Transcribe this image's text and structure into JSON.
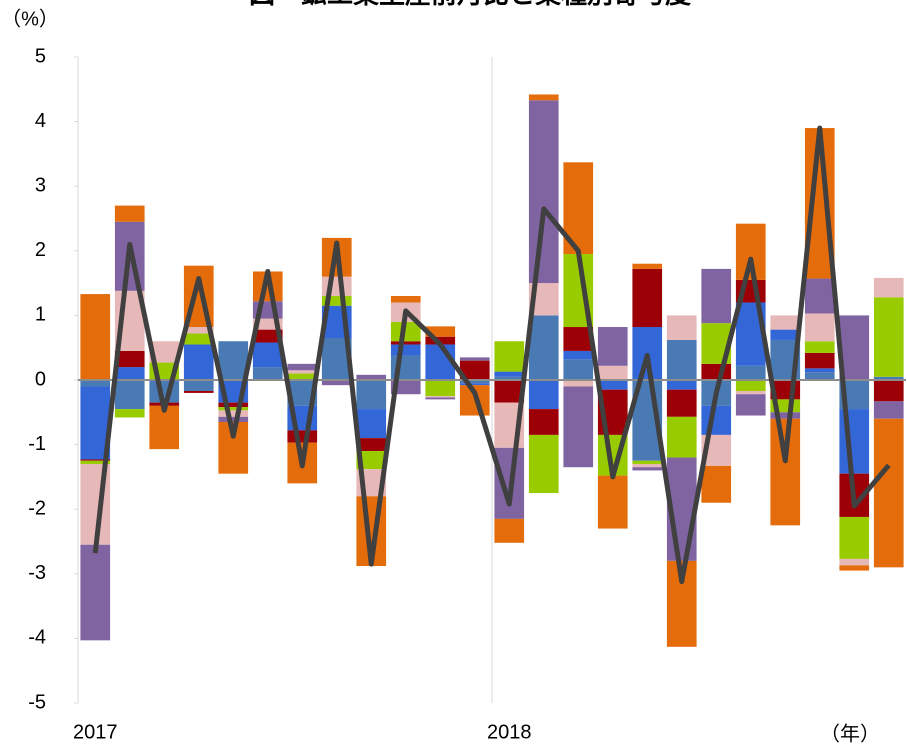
{
  "chart_data": {
    "type": "bar",
    "stacked": true,
    "title": "図　鉱工業生産前月比と業種別寄与度",
    "y_label": "（%）",
    "x_label": "（年）",
    "categories": [
      "2017",
      null,
      null,
      null,
      null,
      null,
      null,
      null,
      null,
      null,
      null,
      null,
      "2018",
      null,
      null,
      null,
      null,
      null,
      null,
      null,
      null,
      null,
      null,
      null
    ],
    "ylim": [
      -5,
      5
    ],
    "yticks": [
      -5,
      -4,
      -3,
      -2,
      -1,
      0,
      1,
      2,
      3,
      4,
      5
    ],
    "series": [
      {
        "color": "#4a7ab4",
        "values": [
          -0.1,
          -0.45,
          -0.35,
          -0.17,
          0.6,
          0.2,
          -0.4,
          0.65,
          -0.45,
          0.38,
          0,
          -0.05,
          0.05,
          1.0,
          0.32,
          0,
          -1.25,
          0.62,
          -0.4,
          0.22,
          0.62,
          0.12,
          -0.45,
          0.05
        ]
      },
      {
        "color": "#3366d6",
        "values": [
          -1.13,
          0.2,
          0,
          0.55,
          -0.35,
          0.38,
          -0.38,
          0.5,
          -0.45,
          0.17,
          0.55,
          -0.03,
          0.08,
          -0.45,
          0.13,
          -0.15,
          0.82,
          -0.15,
          -0.45,
          0.98,
          0.16,
          0.06,
          -1.0,
          0
        ]
      },
      {
        "color": "#9c0006",
        "values": [
          -0.02,
          0.25,
          -0.05,
          -0.03,
          -0.07,
          0.2,
          -0.19,
          0,
          -0.2,
          0.05,
          0.12,
          0.3,
          -0.35,
          -0.4,
          0.37,
          -0.7,
          0.9,
          -0.42,
          0.25,
          0.35,
          -0.3,
          0.24,
          -0.67,
          -0.33
        ]
      },
      {
        "color": "#99cc00",
        "values": [
          -0.05,
          -0.13,
          0.27,
          0.17,
          -0.05,
          0,
          0.1,
          0.15,
          -0.28,
          0.3,
          -0.25,
          0,
          0.47,
          -0.9,
          1.13,
          -0.63,
          -0.05,
          -0.63,
          0.63,
          -0.17,
          -0.2,
          0.18,
          -0.65,
          1.23
        ]
      },
      {
        "color": "#e6b9b8",
        "values": [
          -1.25,
          0.93,
          0.33,
          0.1,
          -0.1,
          0.17,
          0.05,
          0.3,
          -0.42,
          0.3,
          -0.02,
          0,
          -0.7,
          0.5,
          -0.1,
          0.22,
          -0.05,
          0.38,
          -0.48,
          -0.05,
          0.22,
          0.43,
          -0.1,
          0.3
        ]
      },
      {
        "color": "#8064a2",
        "values": [
          -1.48,
          1.07,
          0,
          0,
          -0.08,
          0.27,
          0.1,
          -0.08,
          0.08,
          -0.22,
          -0.03,
          0.05,
          -1.1,
          2.83,
          -1.25,
          0.6,
          -0.05,
          -1.6,
          0.84,
          -0.33,
          -0.1,
          0.54,
          1.0,
          -0.27
        ]
      },
      {
        "color": "#e46c0a",
        "values": [
          1.33,
          0.25,
          -0.67,
          0.95,
          -0.8,
          0.46,
          -0.63,
          0.6,
          -1.08,
          0.1,
          0.16,
          -0.47,
          -0.37,
          0.09,
          1.42,
          -0.82,
          0.08,
          -1.33,
          -0.57,
          0.87,
          -1.65,
          2.33,
          -0.08,
          -2.3
        ]
      },
      {
        "type": "line",
        "color": "#404040",
        "values": [
          -2.68,
          2.1,
          -0.47,
          1.57,
          -0.87,
          1.68,
          -1.33,
          2.12,
          -2.85,
          1.07,
          0.55,
          -0.2,
          -1.92,
          2.65,
          2.0,
          -1.5,
          0.38,
          -3.12,
          -0.2,
          1.87,
          -1.25,
          3.9,
          -1.95,
          -1.32
        ]
      }
    ]
  }
}
